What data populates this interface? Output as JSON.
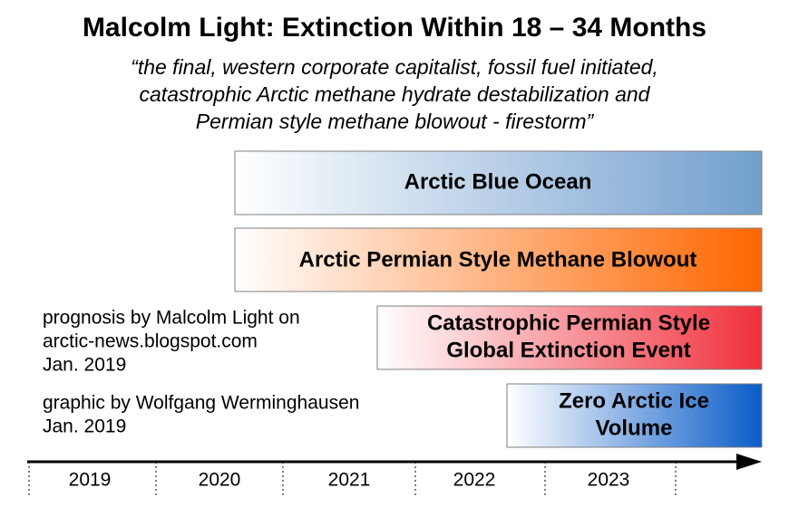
{
  "header": {
    "title": "Malcolm Light: Extinction Within 18 – 34 Months",
    "quote": [
      "“the final, western corporate capitalist, fossil fuel initiated,",
      "catastrophic Arctic methane hydrate destabilization and",
      "Permian style methane blowout - firestorm”"
    ]
  },
  "bars": [
    {
      "label": [
        "Arctic Blue Ocean"
      ]
    },
    {
      "label": [
        "Arctic Permian Style Methane Blowout"
      ]
    },
    {
      "label": [
        "Catastrophic Permian Style",
        "Global Extinction Event"
      ]
    },
    {
      "label": [
        "Zero Arctic Ice",
        "Volume"
      ]
    }
  ],
  "notes": [
    [
      "prognosis by Malcolm Light on",
      "arctic-news.blogspot.com",
      "Jan. 2019"
    ],
    [
      "graphic by Wolfgang Werminghausen",
      "Jan. 2019"
    ]
  ],
  "timeline": {
    "years": [
      "2019",
      "2020",
      "2021",
      "2022",
      "2023"
    ]
  }
}
